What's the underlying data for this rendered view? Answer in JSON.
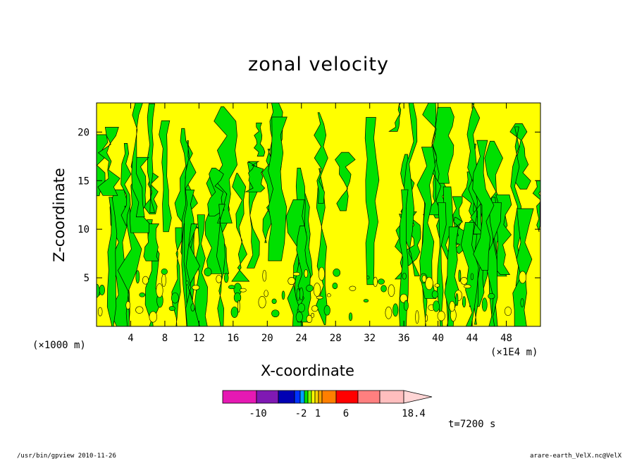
{
  "chart_data": {
    "type": "heatmap",
    "title": "zonal velocity",
    "xlabel": "X-coordinate",
    "ylabel": "Z-coordinate",
    "x_unit_left": "(×1000 m)",
    "x_unit_right": "(×1E4 m)",
    "xlim": [
      0,
      52
    ],
    "ylim": [
      0,
      23
    ],
    "x_ticks": [
      4,
      8,
      12,
      16,
      20,
      24,
      28,
      32,
      36,
      40,
      44,
      48
    ],
    "y_ticks": [
      5,
      10,
      15,
      20
    ],
    "time_label": "t=7200 s",
    "dominant_fill_colors": {
      "positive": "#ffff00",
      "negative": "#00e000"
    },
    "colorbar": {
      "labels": [
        "-10",
        "-2",
        "1",
        "6",
        "18.4"
      ],
      "colors": [
        "#e619b3",
        "#7f19b3",
        "#0000b3",
        "#0033ff",
        "#00a0ff",
        "#00e000",
        "#7fff00",
        "#ffff00",
        "#ffd700",
        "#ffa500",
        "#ff7f00",
        "#ff0000",
        "#ff7f7f",
        "#ffbebe",
        "#ffd5d5"
      ]
    }
  },
  "footer": {
    "left": "/usr/bin/gpview   2010-11-26",
    "right": "arare-earth_VelX.nc@VelX"
  }
}
